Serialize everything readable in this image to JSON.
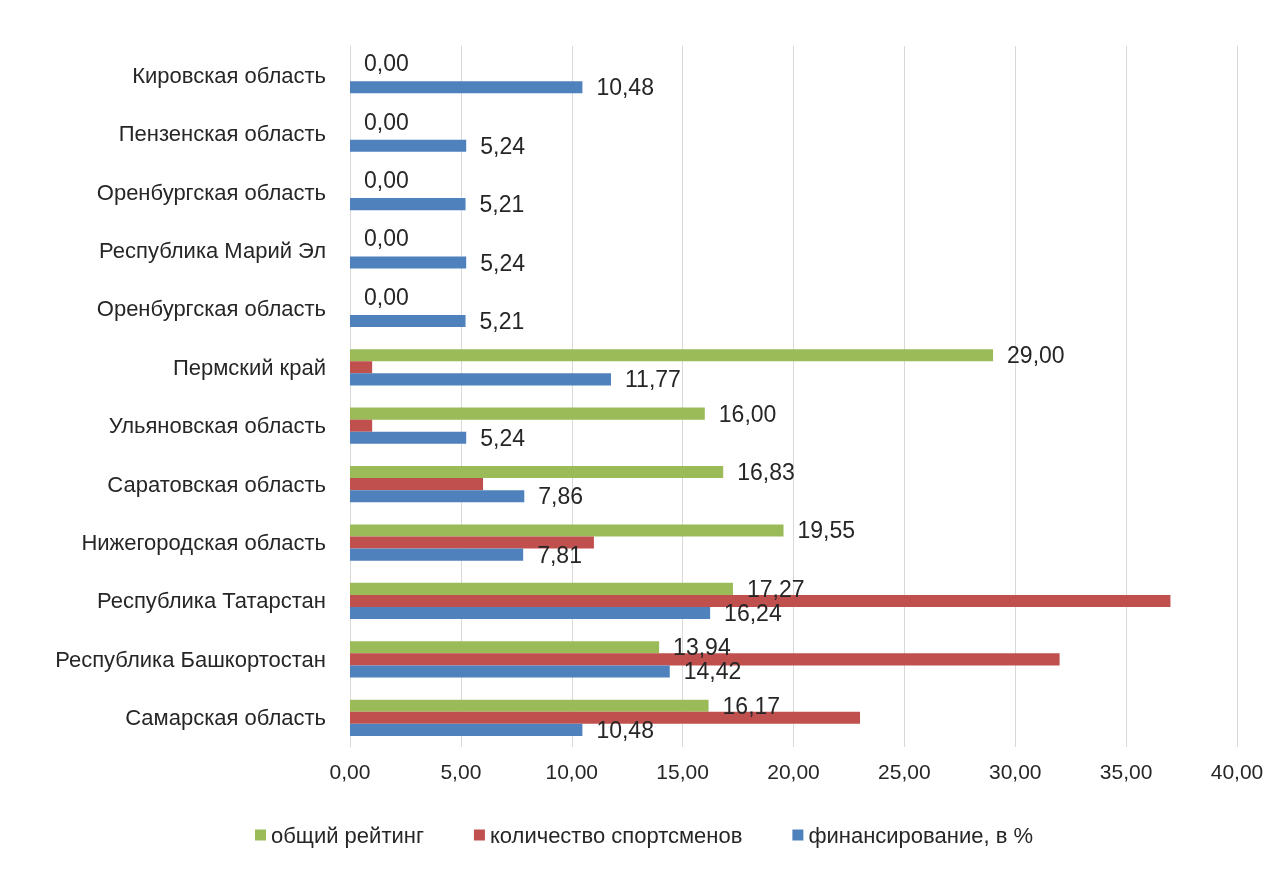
{
  "chart_data": {
    "type": "bar",
    "orientation": "horizontal",
    "categories": [
      "Кировская область",
      "Пензенская область",
      "Оренбургская область",
      "Республика Марий Эл",
      "Оренбургская область",
      "Пермский край",
      "Ульяновская область",
      "Саратовская область",
      "Нижегородская область",
      "Республика Татарстан",
      "Республика Башкортостан",
      "Самарская область"
    ],
    "series": [
      {
        "name": "общий рейтинг",
        "color": "#9bbb59",
        "values": [
          0,
          0,
          0,
          0,
          0,
          29,
          16,
          16.83,
          19.55,
          17.27,
          13.94,
          16.17
        ],
        "value_labels": [
          "0,00",
          "0,00",
          "0,00",
          "0,00",
          "0,00",
          "29,00",
          "16,00",
          "16,83",
          "19,55",
          "17,27",
          "13,94",
          "16,17"
        ]
      },
      {
        "name": "количество спортсменов",
        "color": "#c0504d",
        "values": [
          0,
          0,
          0,
          0,
          0,
          1,
          1,
          6,
          11,
          37,
          32,
          23
        ]
      },
      {
        "name": "финансирование, в %",
        "color": "#4f81bd",
        "values": [
          10.48,
          5.24,
          5.21,
          5.24,
          5.21,
          11.77,
          5.24,
          7.86,
          7.81,
          16.24,
          14.42,
          10.48
        ],
        "value_labels": [
          "10,48",
          "5,24",
          "5,21",
          "5,24",
          "5,21",
          "11,77",
          "5,24",
          "7,86",
          "7,81",
          "16,24",
          "14,42",
          "10,48"
        ]
      }
    ],
    "xlim": [
      0,
      40
    ],
    "xticks": [
      {
        "value": 0,
        "label": "0,00"
      },
      {
        "value": 5,
        "label": "5,00"
      },
      {
        "value": 10,
        "label": "10,00"
      },
      {
        "value": 15,
        "label": "15,00"
      },
      {
        "value": 20,
        "label": "20,00"
      },
      {
        "value": 25,
        "label": "25,00"
      },
      {
        "value": 30,
        "label": "30,00"
      },
      {
        "value": 35,
        "label": "35,00"
      },
      {
        "value": 40,
        "label": "40,00"
      }
    ],
    "grid": "x",
    "legend": "bottom"
  }
}
